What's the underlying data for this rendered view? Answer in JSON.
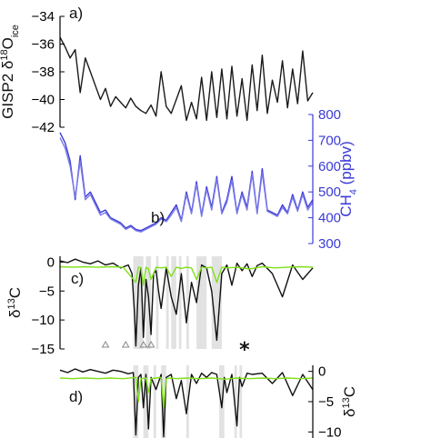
{
  "chart_data": [
    {
      "panel": "a",
      "type": "line",
      "panel_label": "a)",
      "ylabel": "GISP2 δ18Oice",
      "ylabel_parts": {
        "pre": "GISP2 δ",
        "sup": "18",
        "main": "O",
        "sub": "ice"
      },
      "ylim": [
        -42,
        -34
      ],
      "yticks": [
        -34,
        -36,
        -38,
        -40,
        -42
      ],
      "series": [
        {
          "color": "#1a1a1a",
          "x": [
            0,
            0.02,
            0.04,
            0.06,
            0.08,
            0.1,
            0.12,
            0.14,
            0.16,
            0.18,
            0.2,
            0.22,
            0.24,
            0.26,
            0.28,
            0.3,
            0.32,
            0.34,
            0.36,
            0.38,
            0.4,
            0.42,
            0.44,
            0.46,
            0.48,
            0.5,
            0.52,
            0.54,
            0.56,
            0.58,
            0.6,
            0.62,
            0.64,
            0.66,
            0.68,
            0.7,
            0.72,
            0.74,
            0.76,
            0.78,
            0.8,
            0.82,
            0.84,
            0.86,
            0.88,
            0.9,
            0.92,
            0.94,
            0.96,
            0.98,
            1.0
          ],
          "y": [
            -35.5,
            -36.2,
            -37.0,
            -36.4,
            -39.5,
            -37.0,
            -38.0,
            -39.0,
            -40.0,
            -39.2,
            -40.5,
            -39.8,
            -40.2,
            -40.6,
            -39.9,
            -40.5,
            -40.8,
            -41.0,
            -40.4,
            -41.2,
            -38.0,
            -40.5,
            -41.0,
            -40.0,
            -39.0,
            -41.5,
            -40.2,
            -41.4,
            -38.4,
            -41.5,
            -38.0,
            -41.3,
            -37.8,
            -41.4,
            -37.6,
            -41.2,
            -38.5,
            -41.5,
            -37.5,
            -40.8,
            -36.8,
            -41.0,
            -38.6,
            -40.2,
            -37.2,
            -40.6,
            -37.8,
            -40.3,
            -36.5,
            -40.1,
            -39.5
          ]
        }
      ]
    },
    {
      "panel": "b",
      "type": "line",
      "panel_label": "b)",
      "ylabel": "CH4 (ppbv)",
      "ylabel_parts": {
        "pre": "CH",
        "sub": "4",
        "post": " (ppbv)"
      },
      "ylim": [
        300,
        800
      ],
      "yticks": [
        800,
        700,
        600,
        500,
        400,
        300
      ],
      "axis_color": "#3a3ad6",
      "series": [
        {
          "color": "#3b3bd9",
          "x": [
            0,
            0.02,
            0.04,
            0.06,
            0.08,
            0.1,
            0.12,
            0.14,
            0.16,
            0.18,
            0.2,
            0.22,
            0.24,
            0.26,
            0.28,
            0.3,
            0.32,
            0.34,
            0.36,
            0.38,
            0.4,
            0.42,
            0.44,
            0.46,
            0.48,
            0.5,
            0.52,
            0.54,
            0.56,
            0.58,
            0.6,
            0.62,
            0.64,
            0.66,
            0.68,
            0.7,
            0.72,
            0.74,
            0.76,
            0.78,
            0.8,
            0.82,
            0.84,
            0.86,
            0.88,
            0.9,
            0.92,
            0.94,
            0.96,
            0.98,
            1.0
          ],
          "y": [
            730,
            690,
            620,
            470,
            640,
            480,
            500,
            460,
            420,
            430,
            400,
            390,
            380,
            360,
            370,
            355,
            350,
            360,
            370,
            380,
            400,
            390,
            420,
            450,
            390,
            500,
            420,
            540,
            410,
            520,
            440,
            560,
            420,
            470,
            560,
            420,
            500,
            440,
            580,
            420,
            590,
            430,
            420,
            410,
            450,
            420,
            490,
            430,
            500,
            440,
            470
          ]
        },
        {
          "color": "#7a7ae8",
          "x": [
            0,
            0.02,
            0.04,
            0.06,
            0.08,
            0.1,
            0.12,
            0.14,
            0.16,
            0.18,
            0.2,
            0.22,
            0.24,
            0.26,
            0.28,
            0.3,
            0.32,
            0.34,
            0.36,
            0.38,
            0.4,
            0.42,
            0.44,
            0.46,
            0.48,
            0.5,
            0.52,
            0.54,
            0.56,
            0.58,
            0.6,
            0.62,
            0.64,
            0.66,
            0.68,
            0.7,
            0.72,
            0.74,
            0.76,
            0.78,
            0.8,
            0.82,
            0.84,
            0.86,
            0.88,
            0.9,
            0.92,
            0.94,
            0.96,
            0.98,
            1.0
          ],
          "y": [
            710,
            670,
            600,
            480,
            620,
            470,
            490,
            450,
            410,
            420,
            395,
            385,
            375,
            355,
            365,
            350,
            345,
            355,
            365,
            375,
            395,
            385,
            410,
            440,
            385,
            490,
            415,
            530,
            405,
            510,
            430,
            550,
            415,
            460,
            545,
            415,
            490,
            430,
            570,
            415,
            575,
            425,
            415,
            405,
            440,
            415,
            480,
            425,
            490,
            430,
            460
          ]
        }
      ]
    },
    {
      "panel": "c",
      "type": "line",
      "panel_label": "c)",
      "ylabel": "δ13C",
      "ylabel_parts": {
        "pre": "δ",
        "sup": "13",
        "main": "C"
      },
      "ylim": [
        -15,
        1
      ],
      "yticks": [
        0,
        -5,
        -10,
        -15
      ],
      "shaded_bands": [
        [
          0.29,
          0.33
        ],
        [
          0.34,
          0.36
        ],
        [
          0.38,
          0.39
        ],
        [
          0.42,
          0.43
        ],
        [
          0.44,
          0.46
        ],
        [
          0.47,
          0.48
        ],
        [
          0.5,
          0.51
        ],
        [
          0.54,
          0.58
        ],
        [
          0.6,
          0.64
        ]
      ],
      "triangle_markers_x": [
        0.18,
        0.26,
        0.33,
        0.36
      ],
      "asterisk_x": 0.73,
      "asterisk": "*",
      "series": [
        {
          "color": "#111111",
          "x": [
            0,
            0.03,
            0.06,
            0.09,
            0.12,
            0.15,
            0.18,
            0.21,
            0.24,
            0.27,
            0.285,
            0.295,
            0.3,
            0.31,
            0.32,
            0.33,
            0.34,
            0.35,
            0.36,
            0.37,
            0.38,
            0.39,
            0.4,
            0.42,
            0.44,
            0.46,
            0.48,
            0.5,
            0.52,
            0.54,
            0.56,
            0.58,
            0.6,
            0.62,
            0.64,
            0.66,
            0.68,
            0.7,
            0.72,
            0.74,
            0.76,
            0.78,
            0.8,
            0.84,
            0.88,
            0.92,
            0.96,
            1.0
          ],
          "y": [
            0.2,
            -0.1,
            0.5,
            0.0,
            -0.3,
            0.2,
            -0.5,
            -0.2,
            -1.0,
            -0.5,
            -2.0,
            -9.0,
            -14.5,
            -4.0,
            -1.0,
            -13.0,
            -3.0,
            -6.0,
            -12.5,
            -2.0,
            -1.5,
            -5.0,
            -8.0,
            -1.0,
            -6.0,
            -9.0,
            -2.0,
            -10.5,
            -3.5,
            -7.0,
            -0.5,
            -1.0,
            -5.0,
            -13.5,
            -2.0,
            -0.5,
            -4.0,
            -0.2,
            -1.5,
            -0.3,
            -2.5,
            -0.6,
            -0.2,
            -2.0,
            -6.0,
            -0.5,
            -3.0,
            -1.0
          ]
        },
        {
          "color": "#7fe01a",
          "x": [
            0,
            0.05,
            0.1,
            0.15,
            0.2,
            0.25,
            0.3,
            0.31,
            0.32,
            0.33,
            0.34,
            0.35,
            0.36,
            0.38,
            0.4,
            0.42,
            0.44,
            0.46,
            0.48,
            0.5,
            0.52,
            0.54,
            0.56,
            0.58,
            0.6,
            0.62,
            0.64,
            0.66,
            0.7,
            0.75,
            0.8,
            0.85,
            0.9,
            0.95,
            1.0
          ],
          "y": [
            -0.8,
            -0.9,
            -0.8,
            -0.9,
            -0.8,
            -0.9,
            -3.5,
            -0.9,
            -1.0,
            -4.0,
            -0.9,
            -1.2,
            -3.0,
            -0.9,
            -1.0,
            -0.9,
            -2.5,
            -0.9,
            -1.1,
            -0.9,
            -1.0,
            -3.0,
            -0.9,
            -1.0,
            -0.9,
            -3.5,
            -0.9,
            -1.0,
            -0.9,
            -1.2,
            -0.8,
            -1.0,
            -0.9,
            -0.8,
            -0.9
          ]
        }
      ]
    },
    {
      "panel": "d",
      "type": "line",
      "panel_label": "d)",
      "ylabel": "δ13C",
      "ylabel_parts": {
        "pre": "δ",
        "sup": "13",
        "main": "C"
      },
      "ylim": [
        -11,
        1
      ],
      "yticks": [
        0,
        -5,
        -10
      ],
      "shaded_bands": [
        [
          0.29,
          0.31
        ],
        [
          0.33,
          0.35
        ],
        [
          0.37,
          0.38
        ],
        [
          0.4,
          0.42
        ],
        [
          0.5,
          0.51
        ],
        [
          0.63,
          0.65
        ],
        [
          0.69,
          0.7
        ],
        [
          0.71,
          0.72
        ]
      ],
      "series": [
        {
          "color": "#111111",
          "x": [
            0,
            0.03,
            0.06,
            0.09,
            0.12,
            0.15,
            0.18,
            0.21,
            0.24,
            0.27,
            0.29,
            0.3,
            0.31,
            0.32,
            0.33,
            0.34,
            0.35,
            0.36,
            0.38,
            0.4,
            0.41,
            0.42,
            0.44,
            0.46,
            0.48,
            0.5,
            0.52,
            0.54,
            0.56,
            0.58,
            0.6,
            0.62,
            0.64,
            0.65,
            0.66,
            0.68,
            0.7,
            0.71,
            0.72,
            0.74,
            0.76,
            0.8,
            0.84,
            0.88,
            0.92,
            0.96,
            1.0
          ],
          "y": [
            0.2,
            -0.2,
            0.4,
            -0.1,
            0.3,
            0.0,
            -0.3,
            0.2,
            0.0,
            -0.4,
            -0.2,
            -10.5,
            -1.0,
            -0.5,
            -6.0,
            -0.5,
            -9.5,
            -1.0,
            -3.0,
            -0.5,
            -10.8,
            -1.0,
            -0.5,
            -4.5,
            -1.5,
            -7.0,
            -0.5,
            -2.0,
            -0.3,
            -1.0,
            -0.2,
            -0.5,
            -6.0,
            -1.0,
            -3.5,
            -0.5,
            -9.0,
            -1.0,
            -2.5,
            -0.3,
            -0.5,
            -0.3,
            -2.0,
            -0.2,
            -4.0,
            -0.5,
            -3.0
          ]
        },
        {
          "color": "#7fe01a",
          "x": [
            0,
            0.05,
            0.1,
            0.15,
            0.2,
            0.25,
            0.3,
            0.31,
            0.32,
            0.34,
            0.35,
            0.36,
            0.38,
            0.4,
            0.41,
            0.42,
            0.44,
            0.46,
            0.5,
            0.55,
            0.6,
            0.65,
            0.7,
            0.75,
            0.8,
            0.85,
            0.9,
            0.95,
            1.0
          ],
          "y": [
            -1.1,
            -1.2,
            -1.1,
            -1.2,
            -1.1,
            -1.2,
            -1.0,
            -5.0,
            -1.2,
            -1.1,
            -3.5,
            -1.2,
            -1.1,
            -1.0,
            -6.0,
            -1.2,
            -1.1,
            -1.2,
            -1.1,
            -1.2,
            -1.1,
            -1.3,
            -1.1,
            -1.2,
            -1.1,
            -1.2,
            -1.1,
            -1.2,
            -1.1
          ]
        }
      ]
    }
  ]
}
